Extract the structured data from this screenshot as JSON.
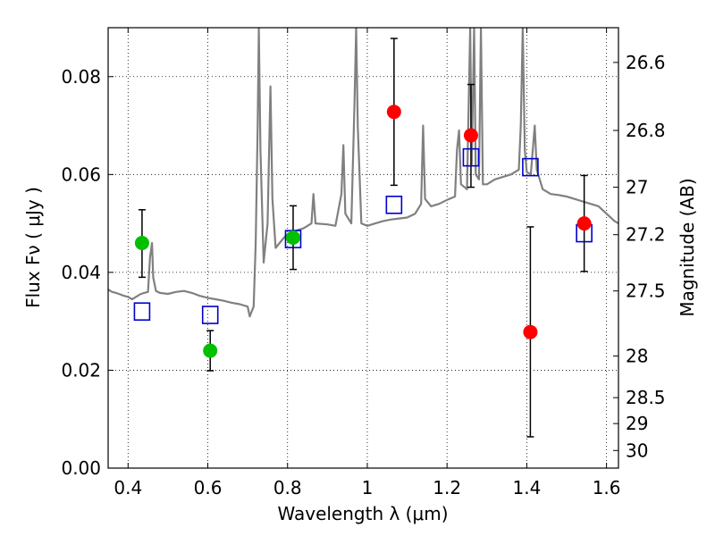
{
  "chart_data": {
    "type": "scatter",
    "xlabel": "Wavelength  λ (μm)",
    "ylabel": "Flux  Fν  ( μJy )",
    "ylabel_right": "Magnitude (AB)",
    "xlim": [
      0.35,
      1.63
    ],
    "ylim": [
      0.0,
      0.09
    ],
    "grid": true,
    "x_ticks": [
      {
        "value": 0.4,
        "label": "0.4"
      },
      {
        "value": 0.6,
        "label": "0.6"
      },
      {
        "value": 0.8,
        "label": "0.8"
      },
      {
        "value": 1.0,
        "label": "1"
      },
      {
        "value": 1.2,
        "label": "1.2"
      },
      {
        "value": 1.4,
        "label": "1.4"
      },
      {
        "value": 1.6,
        "label": "1.6"
      }
    ],
    "y_ticks": [
      {
        "value": 0.0,
        "label": "0.00"
      },
      {
        "value": 0.02,
        "label": "0.02"
      },
      {
        "value": 0.04,
        "label": "0.04"
      },
      {
        "value": 0.06,
        "label": "0.06"
      },
      {
        "value": 0.08,
        "label": "0.08"
      }
    ],
    "right_ticks": [
      {
        "label": "26.6",
        "flux": 0.0829
      },
      {
        "label": "26.8",
        "flux": 0.069
      },
      {
        "label": "27",
        "flux": 0.0574
      },
      {
        "label": "27.2",
        "flux": 0.0477
      },
      {
        "label": "27.5",
        "flux": 0.0362
      },
      {
        "label": "28",
        "flux": 0.0229
      },
      {
        "label": "28.5",
        "flux": 0.0144
      },
      {
        "label": "29",
        "flux": 0.0091
      },
      {
        "label": "30",
        "flux": 0.0036
      }
    ],
    "series": [
      {
        "marker": "filled-circle",
        "color": "#00c000",
        "points": [
          {
            "x": 0.435,
            "y": 0.046,
            "yerr_low": 0.039,
            "yerr_high": 0.0528
          },
          {
            "x": 0.606,
            "y": 0.024,
            "yerr_low": 0.0199,
            "yerr_high": 0.0281
          },
          {
            "x": 0.814,
            "y": 0.0471,
            "yerr_low": 0.0406,
            "yerr_high": 0.0536
          }
        ]
      },
      {
        "marker": "filled-circle",
        "color": "#ff0000",
        "points": [
          {
            "x": 1.067,
            "y": 0.0728,
            "yerr_low": 0.0578,
            "yerr_high": 0.0878
          },
          {
            "x": 1.26,
            "y": 0.068,
            "yerr_low": 0.0574,
            "yerr_high": 0.0784
          },
          {
            "x": 1.409,
            "y": 0.0278,
            "yerr_low": 0.0064,
            "yerr_high": 0.0493
          },
          {
            "x": 1.544,
            "y": 0.05,
            "yerr_low": 0.0402,
            "yerr_high": 0.0598
          }
        ]
      },
      {
        "marker": "open-square",
        "color": "#0000cc",
        "points": [
          {
            "x": 0.435,
            "y": 0.032
          },
          {
            "x": 0.606,
            "y": 0.0313
          },
          {
            "x": 0.814,
            "y": 0.0468
          },
          {
            "x": 1.067,
            "y": 0.0538
          },
          {
            "x": 1.26,
            "y": 0.0635
          },
          {
            "x": 1.409,
            "y": 0.0615
          },
          {
            "x": 1.544,
            "y": 0.048
          }
        ]
      },
      {
        "marker": "line",
        "color": "#808080",
        "points": [
          [
            0.35,
            0.0365
          ],
          [
            0.36,
            0.036
          ],
          [
            0.37,
            0.0358
          ],
          [
            0.38,
            0.0355
          ],
          [
            0.39,
            0.0352
          ],
          [
            0.4,
            0.035
          ],
          [
            0.41,
            0.0345
          ],
          [
            0.42,
            0.035
          ],
          [
            0.43,
            0.0355
          ],
          [
            0.44,
            0.0358
          ],
          [
            0.45,
            0.036
          ],
          [
            0.455,
            0.043
          ],
          [
            0.46,
            0.046
          ],
          [
            0.463,
            0.039
          ],
          [
            0.47,
            0.0362
          ],
          [
            0.48,
            0.0358
          ],
          [
            0.5,
            0.0356
          ],
          [
            0.52,
            0.036
          ],
          [
            0.54,
            0.0362
          ],
          [
            0.56,
            0.0358
          ],
          [
            0.58,
            0.0352
          ],
          [
            0.6,
            0.0348
          ],
          [
            0.62,
            0.0345
          ],
          [
            0.64,
            0.0342
          ],
          [
            0.66,
            0.0338
          ],
          [
            0.68,
            0.0335
          ],
          [
            0.7,
            0.033
          ],
          [
            0.705,
            0.031
          ],
          [
            0.715,
            0.033
          ],
          [
            0.72,
            0.046
          ],
          [
            0.725,
            0.07
          ],
          [
            0.728,
            0.09
          ],
          [
            0.732,
            0.065
          ],
          [
            0.74,
            0.042
          ],
          [
            0.75,
            0.05
          ],
          [
            0.757,
            0.078
          ],
          [
            0.762,
            0.055
          ],
          [
            0.77,
            0.045
          ],
          [
            0.79,
            0.047
          ],
          [
            0.8,
            0.0478
          ],
          [
            0.82,
            0.0485
          ],
          [
            0.84,
            0.049
          ],
          [
            0.86,
            0.05
          ],
          [
            0.865,
            0.056
          ],
          [
            0.87,
            0.05
          ],
          [
            0.9,
            0.0498
          ],
          [
            0.92,
            0.0495
          ],
          [
            0.935,
            0.056
          ],
          [
            0.94,
            0.066
          ],
          [
            0.945,
            0.052
          ],
          [
            0.96,
            0.05
          ],
          [
            0.968,
            0.075
          ],
          [
            0.972,
            0.09
          ],
          [
            0.976,
            0.07
          ],
          [
            0.985,
            0.05
          ],
          [
            1.0,
            0.0495
          ],
          [
            1.02,
            0.05
          ],
          [
            1.04,
            0.0505
          ],
          [
            1.06,
            0.0508
          ],
          [
            1.08,
            0.051
          ],
          [
            1.1,
            0.0512
          ],
          [
            1.12,
            0.052
          ],
          [
            1.135,
            0.054
          ],
          [
            1.14,
            0.07
          ],
          [
            1.145,
            0.055
          ],
          [
            1.16,
            0.0535
          ],
          [
            1.18,
            0.054
          ],
          [
            1.2,
            0.0548
          ],
          [
            1.22,
            0.0555
          ],
          [
            1.225,
            0.065
          ],
          [
            1.23,
            0.069
          ],
          [
            1.235,
            0.058
          ],
          [
            1.25,
            0.057
          ],
          [
            1.258,
            0.09
          ],
          [
            1.262,
            0.062
          ],
          [
            1.268,
            0.09
          ],
          [
            1.272,
            0.06
          ],
          [
            1.28,
            0.059
          ],
          [
            1.285,
            0.09
          ],
          [
            1.29,
            0.058
          ],
          [
            1.3,
            0.058
          ],
          [
            1.32,
            0.059
          ],
          [
            1.34,
            0.0595
          ],
          [
            1.36,
            0.06
          ],
          [
            1.38,
            0.061
          ],
          [
            1.385,
            0.07
          ],
          [
            1.39,
            0.09
          ],
          [
            1.395,
            0.065
          ],
          [
            1.4,
            0.0605
          ],
          [
            1.41,
            0.06
          ],
          [
            1.42,
            0.07
          ],
          [
            1.425,
            0.061
          ],
          [
            1.44,
            0.057
          ],
          [
            1.46,
            0.056
          ],
          [
            1.48,
            0.0558
          ],
          [
            1.5,
            0.0555
          ],
          [
            1.52,
            0.055
          ],
          [
            1.54,
            0.0545
          ],
          [
            1.56,
            0.054
          ],
          [
            1.58,
            0.0535
          ],
          [
            1.6,
            0.052
          ],
          [
            1.62,
            0.0505
          ],
          [
            1.63,
            0.05
          ]
        ]
      }
    ]
  }
}
